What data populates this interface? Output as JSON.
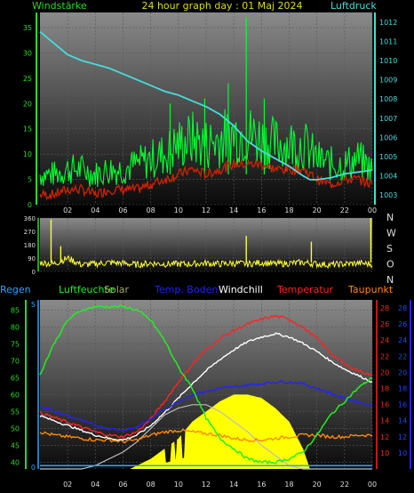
{
  "header": {
    "left": "Windstärke",
    "title": "24 hour graph day : 01 Maj 2024",
    "right": "Luftdruck"
  },
  "weather_header": {
    "regen": "Regen",
    "luftfeuchte": "Luftfeuchte",
    "solar": "Solar",
    "temp_boden": "Temp. Boden",
    "windchill": "Windchill",
    "temperatur": "Temperatur",
    "taupunkt": "Taupunkt"
  },
  "colors": {
    "wind_label": "#22dd22",
    "title": "#dddd00",
    "pressure": "#44dddd",
    "gust": "#00ff33",
    "wind_avg": "#cc2200",
    "direction": "#ffff33",
    "regen": "#22aaff",
    "luftfeuchte": "#22ee22",
    "solar_label": "#aaaa66",
    "solar_fill": "#ffff00",
    "temp_boden": "#2222ff",
    "windchill": "#ffffff",
    "temperatur": "#ff2222",
    "taupunkt": "#ff8800",
    "tick_text": "#dddddd",
    "vertical_axis_left": "#22dd22",
    "vertical_axis_right_blue": "#2222ff",
    "temp_axis": "#ff2222"
  },
  "chart_data": [
    {
      "type": "line",
      "panel": "wind_pressure",
      "title": "24 hour graph day : 01 Maj 2024",
      "xlabel": "",
      "x_ticks": [
        "02",
        "04",
        "06",
        "08",
        "10",
        "12",
        "14",
        "16",
        "18",
        "20",
        "22",
        "00"
      ],
      "x_range_hours": [
        0,
        24
      ],
      "y_left_label": "Windstärke",
      "y_left_ticks": [
        0,
        5,
        10,
        15,
        20,
        25,
        30,
        35
      ],
      "ylim_left": [
        0,
        38
      ],
      "y_right_label": "Luftdruck",
      "y_right_ticks": [
        1003,
        1004,
        1005,
        1006,
        1007,
        1008,
        1009,
        1010,
        1011,
        1012
      ],
      "ylim_right": [
        1002.5,
        1012.5
      ],
      "series": [
        {
          "name": "Luftdruck",
          "axis": "right",
          "x": [
            0,
            1,
            2,
            3,
            4,
            5,
            6,
            7,
            8,
            9,
            10,
            11,
            12,
            13,
            14,
            15,
            16,
            17,
            18,
            19,
            19.5,
            20,
            21,
            22,
            23,
            24
          ],
          "values": [
            1011.5,
            1010.9,
            1010.3,
            1010.0,
            1009.8,
            1009.6,
            1009.3,
            1009.0,
            1008.7,
            1008.4,
            1008.2,
            1007.9,
            1007.6,
            1007.2,
            1006.6,
            1005.8,
            1005.3,
            1004.9,
            1004.5,
            1004.0,
            1003.8,
            1003.8,
            1003.9,
            1004.1,
            1004.2,
            1004.3
          ]
        },
        {
          "name": "Windböen",
          "axis": "left",
          "x": [
            0,
            1,
            2,
            3,
            4,
            5,
            6,
            7,
            8,
            9,
            10,
            11,
            12,
            13,
            14,
            15,
            16,
            17,
            18,
            19,
            20,
            21,
            22,
            23,
            24
          ],
          "values": [
            6,
            6,
            7,
            7,
            6,
            7,
            7,
            8,
            9,
            10,
            12,
            13,
            12,
            13,
            14,
            14,
            13,
            12,
            12,
            12,
            9,
            8,
            8,
            9,
            7
          ]
        },
        {
          "name": "Windstärke Mittel",
          "axis": "left",
          "x": [
            0,
            1,
            2,
            3,
            4,
            5,
            6,
            7,
            8,
            9,
            10,
            11,
            12,
            13,
            14,
            15,
            16,
            17,
            18,
            19,
            20,
            21,
            22,
            23,
            24
          ],
          "values": [
            2,
            2,
            3,
            3,
            2,
            3,
            3,
            3,
            4,
            5,
            6,
            7,
            6,
            7,
            8,
            8,
            8,
            7,
            7,
            7,
            5,
            4,
            5,
            5,
            4
          ]
        }
      ]
    },
    {
      "type": "line",
      "panel": "wind_direction",
      "x_ticks": [
        "02",
        "04",
        "06",
        "08",
        "10",
        "12",
        "14",
        "16",
        "18",
        "20",
        "22",
        "00"
      ],
      "x_range_hours": [
        0,
        24
      ],
      "y_ticks": [
        0,
        90,
        180,
        270,
        360
      ],
      "ylim": [
        0,
        360
      ],
      "right_labels": [
        "N",
        "W",
        "S",
        "O",
        "N"
      ],
      "series": [
        {
          "name": "Windrichtung",
          "x": [
            0,
            1,
            2,
            3,
            4,
            5,
            6,
            7,
            8,
            9,
            10,
            11,
            12,
            13,
            14,
            15,
            16,
            17,
            18,
            19,
            20,
            21,
            22,
            23,
            24
          ],
          "values": [
            60,
            50,
            90,
            45,
            50,
            60,
            55,
            45,
            55,
            50,
            50,
            50,
            55,
            50,
            55,
            50,
            60,
            50,
            55,
            60,
            50,
            45,
            50,
            55,
            50
          ]
        }
      ]
    },
    {
      "type": "area",
      "panel": "climate",
      "x_ticks": [
        "02",
        "04",
        "06",
        "08",
        "10",
        "12",
        "14",
        "16",
        "18",
        "20",
        "22",
        "00"
      ],
      "x_range_hours": [
        0,
        24
      ],
      "y_left_ticks": [
        40,
        45,
        50,
        55,
        60,
        65,
        70,
        75,
        80,
        85
      ],
      "ylim_left": [
        38,
        88
      ],
      "y_temp_ticks": [
        10,
        12,
        14,
        16,
        18,
        20,
        22,
        24,
        26,
        28
      ],
      "ylim_temp": [
        8,
        29
      ],
      "series": [
        {
          "name": "Luftfeuchte",
          "axis": "left",
          "x": [
            0,
            1,
            2,
            3,
            4,
            5,
            6,
            7,
            8,
            9,
            10,
            11,
            12,
            13,
            14,
            15,
            16,
            17,
            18,
            19,
            20,
            21,
            22,
            23,
            24
          ],
          "values": [
            66,
            75,
            82,
            85,
            86,
            86,
            86,
            85,
            82,
            76,
            68,
            62,
            53,
            47,
            44,
            41,
            40,
            40,
            41,
            43,
            48,
            54,
            58,
            62,
            65
          ]
        },
        {
          "name": "Solar",
          "axis": "left",
          "x": [
            0,
            3,
            4,
            5,
            6,
            7,
            8,
            9,
            10,
            11,
            12,
            13,
            14,
            15,
            16,
            17,
            18,
            19,
            20,
            21,
            24
          ],
          "values": [
            38,
            38,
            39,
            41,
            43,
            46,
            50,
            54,
            56,
            57,
            57,
            55,
            52,
            49,
            45,
            42,
            39,
            38,
            38,
            38,
            38
          ]
        },
        {
          "name": "Solar Strahlung",
          "axis": "left",
          "x": [
            0,
            6.5,
            7,
            8,
            9,
            10,
            11,
            12,
            13,
            14,
            15,
            16,
            17,
            18,
            19,
            19.5,
            24
          ],
          "values": [
            38,
            38,
            39,
            41,
            44,
            47,
            52,
            55,
            58,
            60,
            60,
            59,
            56,
            52,
            44,
            38,
            38
          ]
        },
        {
          "name": "Temp. Boden",
          "axis": "temp",
          "x": [
            0,
            1,
            2,
            3,
            4,
            5,
            6,
            7,
            8,
            9,
            10,
            11,
            12,
            13,
            14,
            15,
            16,
            17,
            18,
            19,
            20,
            21,
            22,
            23,
            24
          ],
          "values": [
            15.8,
            15.2,
            14.6,
            14.0,
            13.4,
            13.0,
            12.8,
            13.2,
            14.2,
            15.4,
            16.4,
            17.2,
            17.6,
            18.0,
            18.2,
            18.4,
            18.6,
            18.8,
            18.8,
            18.6,
            18.0,
            17.4,
            16.8,
            16.3,
            15.9
          ]
        },
        {
          "name": "Windchill",
          "axis": "temp",
          "x": [
            0,
            1,
            2,
            3,
            4,
            5,
            6,
            7,
            8,
            9,
            10,
            11,
            12,
            13,
            14,
            15,
            16,
            17,
            18,
            19,
            20,
            21,
            22,
            23,
            24
          ],
          "values": [
            14.6,
            14.0,
            13.4,
            12.8,
            12.2,
            11.8,
            11.6,
            12.2,
            13.4,
            15.0,
            16.8,
            18.6,
            20.2,
            21.6,
            22.8,
            23.8,
            24.4,
            24.8,
            24.4,
            23.6,
            22.6,
            21.4,
            20.4,
            19.6,
            18.8
          ]
        },
        {
          "name": "Temperatur",
          "axis": "temp",
          "x": [
            0,
            1,
            2,
            3,
            4,
            5,
            6,
            7,
            8,
            9,
            10,
            11,
            12,
            13,
            14,
            15,
            16,
            17,
            18,
            19,
            20,
            21,
            22,
            23,
            24
          ],
          "values": [
            15.0,
            14.4,
            13.8,
            13.2,
            12.6,
            12.2,
            12.0,
            12.6,
            14.2,
            16.4,
            18.8,
            21.0,
            22.8,
            24.2,
            25.2,
            26.0,
            26.6,
            27.0,
            26.6,
            25.6,
            24.2,
            22.4,
            21.0,
            20.2,
            19.6
          ]
        },
        {
          "name": "Taupunkt",
          "axis": "temp",
          "x": [
            0,
            1,
            2,
            3,
            4,
            5,
            6,
            7,
            8,
            9,
            10,
            11,
            12,
            13,
            14,
            15,
            16,
            17,
            18,
            19,
            20,
            21,
            22,
            23,
            24
          ],
          "values": [
            12.6,
            12.2,
            12.0,
            11.8,
            11.6,
            11.6,
            11.4,
            11.6,
            12.2,
            12.6,
            12.8,
            12.6,
            12.4,
            12.2,
            11.8,
            11.6,
            11.6,
            11.8,
            12.0,
            12.2,
            12.2,
            12.0,
            12.0,
            12.2,
            12.2
          ]
        },
        {
          "name": "Regen",
          "axis": "left",
          "x": [
            0,
            24
          ],
          "values": [
            39,
            39
          ]
        }
      ]
    }
  ]
}
